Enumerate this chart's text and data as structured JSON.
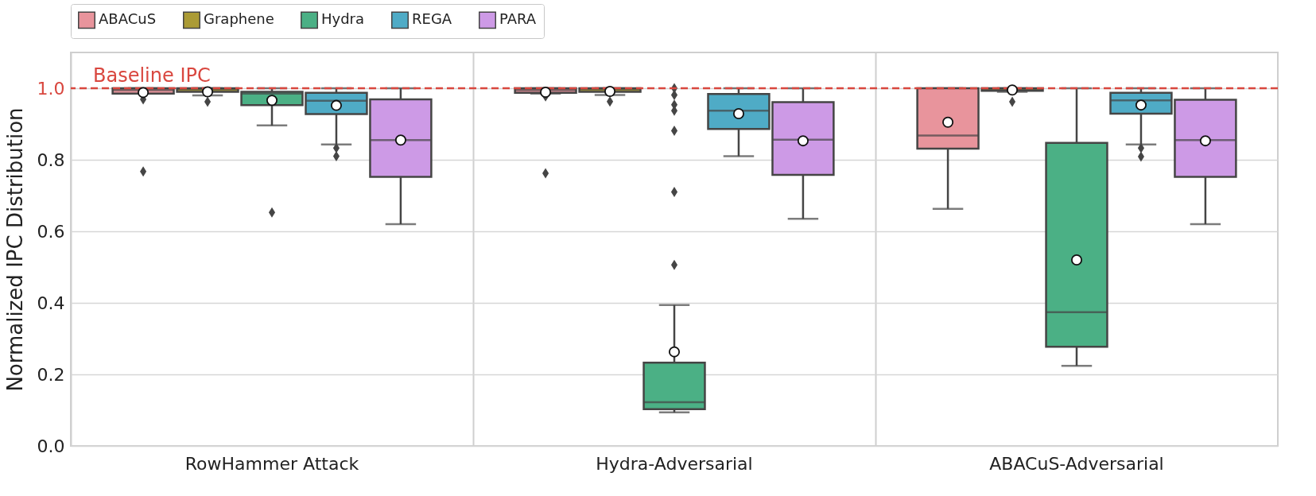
{
  "chart_data": {
    "type": "box",
    "ylabel": "Normalized IPC Distribution",
    "categories": [
      "RowHammer Attack",
      "Hydra-Adversarial",
      "ABACuS-Adversarial"
    ],
    "series": [
      {
        "name": "ABACuS",
        "color": "#e8949c",
        "boxes": [
          {
            "low": 0.985,
            "q1": 0.985,
            "median": 0.995,
            "q3": 1.0,
            "high": 1.0,
            "mean": 0.988,
            "outliers": [
              0.969,
              0.767
            ]
          },
          {
            "low": 0.985,
            "q1": 0.987,
            "median": 0.995,
            "q3": 1.0,
            "high": 1.0,
            "mean": 0.989,
            "outliers": [
              0.977,
              0.762
            ]
          },
          {
            "low": 0.663,
            "q1": 0.831,
            "median": 0.868,
            "q3": 1.0,
            "high": 1.0,
            "mean": 0.905
          }
        ]
      },
      {
        "name": "Graphene",
        "color": "#ab9b35",
        "boxes": [
          {
            "low": 0.98,
            "q1": 0.99,
            "median": 0.997,
            "q3": 1.0,
            "high": 1.0,
            "mean": 0.99,
            "outliers": [
              0.962
            ]
          },
          {
            "low": 0.981,
            "q1": 0.99,
            "median": 0.997,
            "q3": 1.0,
            "high": 1.0,
            "mean": 0.991,
            "outliers": [
              0.963
            ]
          },
          {
            "low": 0.99,
            "q1": 0.993,
            "median": 0.998,
            "q3": 1.0,
            "high": 1.0,
            "mean": 0.995,
            "outliers": [
              0.962
            ]
          }
        ]
      },
      {
        "name": "Hydra",
        "color": "#4bb085",
        "boxes": [
          {
            "low": 0.896,
            "q1": 0.953,
            "median": 0.985,
            "q3": 0.99,
            "high": 1.0,
            "mean": 0.966,
            "outliers": [
              0.653
            ]
          },
          {
            "low": 0.094,
            "q1": 0.103,
            "median": 0.122,
            "q3": 0.233,
            "high": 0.394,
            "mean": 0.263,
            "outliers": [
              0.506,
              0.71,
              0.881,
              0.937,
              0.954,
              0.981,
              1.0
            ]
          },
          {
            "low": 0.224,
            "q1": 0.277,
            "median": 0.374,
            "q3": 0.847,
            "high": 1.0,
            "mean": 0.52
          }
        ]
      },
      {
        "name": "REGA",
        "color": "#4fabc6",
        "boxes": [
          {
            "low": 0.843,
            "q1": 0.928,
            "median": 0.965,
            "q3": 0.987,
            "high": 1.0,
            "mean": 0.952,
            "outliers": [
              0.833,
              0.81
            ]
          },
          {
            "low": 0.81,
            "q1": 0.886,
            "median": 0.937,
            "q3": 0.984,
            "high": 1.0,
            "mean": 0.929
          },
          {
            "low": 0.843,
            "q1": 0.929,
            "median": 0.966,
            "q3": 0.987,
            "high": 1.0,
            "mean": 0.953,
            "outliers": [
              0.833,
              0.809
            ]
          }
        ]
      },
      {
        "name": "PARA",
        "color": "#cd9ae6",
        "boxes": [
          {
            "low": 0.62,
            "q1": 0.752,
            "median": 0.855,
            "q3": 0.969,
            "high": 1.0,
            "mean": 0.855
          },
          {
            "low": 0.635,
            "q1": 0.758,
            "median": 0.856,
            "q3": 0.961,
            "high": 1.0,
            "mean": 0.853
          },
          {
            "low": 0.62,
            "q1": 0.752,
            "median": 0.855,
            "q3": 0.968,
            "high": 1.0,
            "mean": 0.853
          }
        ]
      }
    ],
    "ylim": [
      0,
      1.1
    ],
    "yticks": [
      {
        "value": 0,
        "label": "0.0"
      },
      0.2,
      0.4,
      0.6,
      0.8,
      {
        "value": 1,
        "label": "1.0"
      }
    ],
    "grid": "y",
    "legend": "top",
    "ref_lines": [
      {
        "axis": "y",
        "value": 1.0,
        "label": "Baseline IPC",
        "color": "#d9473f",
        "line_style": "dashed"
      }
    ]
  }
}
